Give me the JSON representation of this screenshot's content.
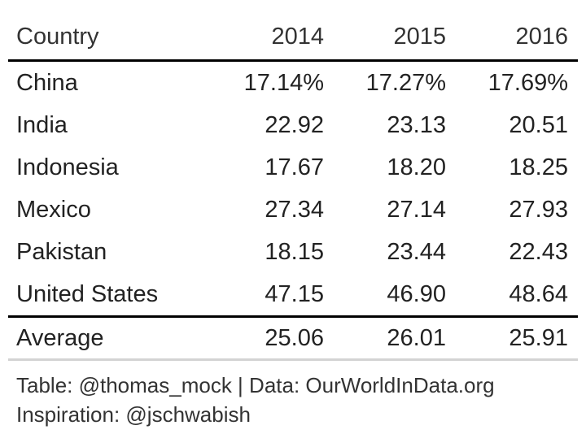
{
  "chart_data": {
    "type": "table",
    "columns": [
      "Country",
      "2014",
      "2015",
      "2016"
    ],
    "rows": [
      {
        "country": "China",
        "values": [
          "17.14%",
          "17.27%",
          "17.69%"
        ]
      },
      {
        "country": "India",
        "values": [
          "22.92",
          "23.13",
          "20.51"
        ]
      },
      {
        "country": "Indonesia",
        "values": [
          "17.67",
          "18.20",
          "18.25"
        ]
      },
      {
        "country": "Mexico",
        "values": [
          "27.34",
          "27.14",
          "27.93"
        ]
      },
      {
        "country": "Pakistan",
        "values": [
          "18.15",
          "23.44",
          "22.43"
        ]
      },
      {
        "country": "United States",
        "values": [
          "47.15",
          "46.90",
          "48.64"
        ]
      }
    ],
    "summary": {
      "label": "Average",
      "values": [
        "25.06",
        "26.01",
        "25.91"
      ]
    },
    "source_note": [
      "Table: @thomas_mock | Data: OurWorldInData.org",
      "Inspiration: @jschwabish"
    ]
  }
}
